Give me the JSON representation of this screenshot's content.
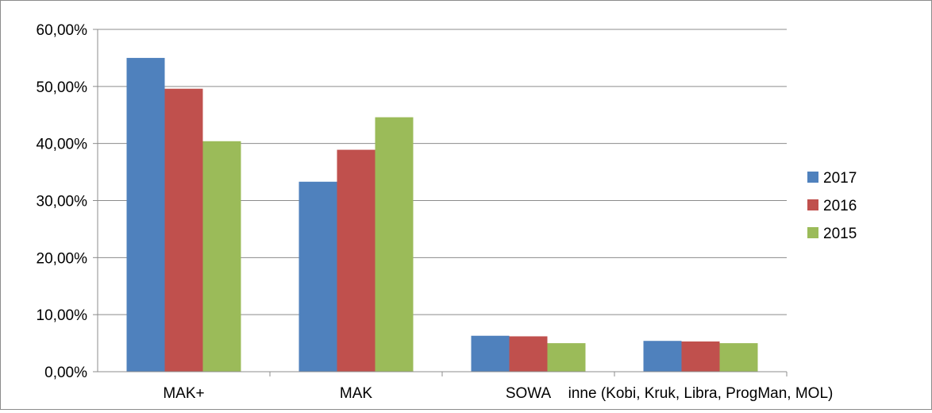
{
  "chart_data": {
    "type": "bar",
    "categories": [
      "MAK+",
      "MAK",
      "SOWA",
      "inne (Kobi, Kruk, Libra, ProgMan, MOL)"
    ],
    "series": [
      {
        "name": "2017",
        "values": [
          55.0,
          33.3,
          6.3,
          5.4
        ]
      },
      {
        "name": "2016",
        "values": [
          49.6,
          38.9,
          6.2,
          5.3
        ]
      },
      {
        "name": "2015",
        "values": [
          40.4,
          44.6,
          5.0,
          5.0
        ]
      }
    ],
    "ylim": [
      0,
      60
    ],
    "yticks": [
      "0,00%",
      "10,00%",
      "20,00%",
      "30,00%",
      "40,00%",
      "50,00%",
      "60,00%"
    ],
    "grid": true,
    "legend": "right",
    "colors": [
      "#4f81bd",
      "#c0504d",
      "#9bbb59"
    ]
  }
}
